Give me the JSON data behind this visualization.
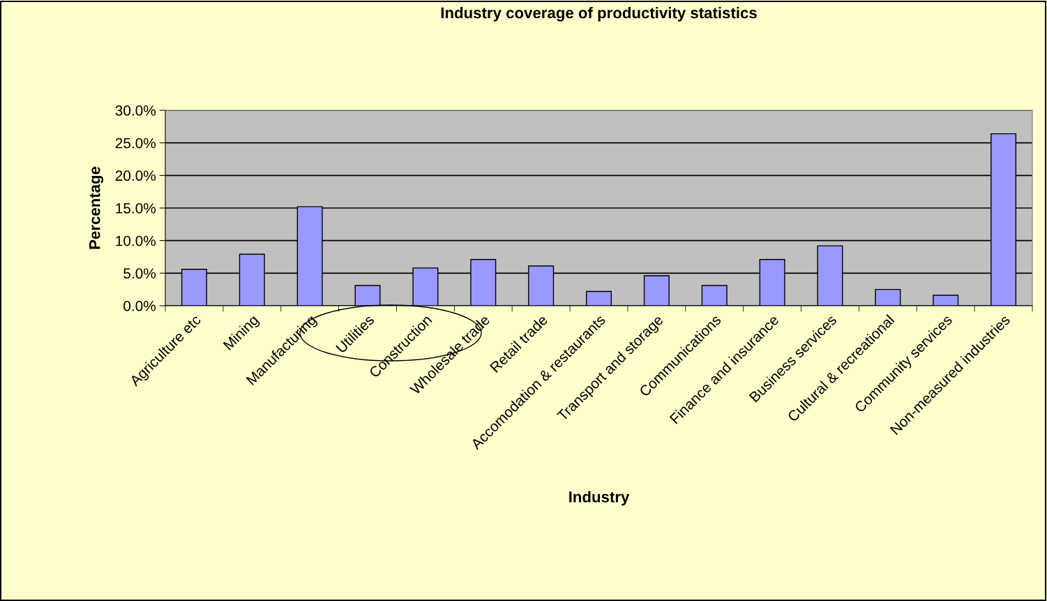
{
  "chart_data": {
    "type": "bar",
    "title": "Industry coverage of productivity statistics",
    "xlabel": "Industry",
    "ylabel": "Percentage",
    "categories": [
      "Agriculture etc",
      "Mining",
      "Manufacturing",
      "Utilities",
      "Construction",
      "Wholesale trade",
      "Retail trade",
      "Accomodation & restaurants",
      "Transport and storage",
      "Communications",
      "Finance and insurance",
      "Business services",
      "Cultural & recreational",
      "Community services",
      "Non-measured industries"
    ],
    "values": [
      5.6,
      7.9,
      15.2,
      3.1,
      5.8,
      7.1,
      6.1,
      2.2,
      4.6,
      3.1,
      7.1,
      9.2,
      2.5,
      1.6,
      26.4
    ],
    "color": "#9999ff",
    "ylim": [
      0,
      30
    ],
    "yticks": [
      {
        "value": 0,
        "label": "0.0%"
      },
      {
        "value": 5,
        "label": "5.0%"
      },
      {
        "value": 10,
        "label": "10.0%"
      },
      {
        "value": 15,
        "label": "15.0%"
      },
      {
        "value": 20,
        "label": "20.0%"
      },
      {
        "value": 25,
        "label": "25.0%"
      },
      {
        "value": 30,
        "label": "30.0%"
      }
    ],
    "grid": "y",
    "legend": false
  }
}
